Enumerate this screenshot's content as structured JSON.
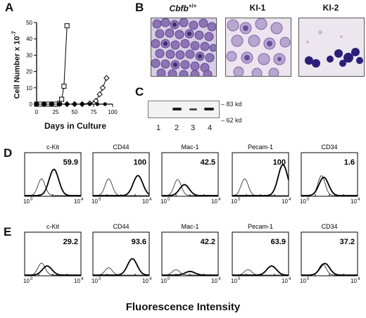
{
  "panel_labels": {
    "a": "A",
    "b": "B",
    "c": "C",
    "d": "D",
    "e": "E"
  },
  "panel_a": {
    "y_axis_label": "Cell Number x 10",
    "y_axis_exponent": "-7",
    "x_axis_label": "Days in Culture"
  },
  "chart_data": {
    "type": "line",
    "xlabel": "Days in Culture",
    "ylabel": "Cell Number x 10-7",
    "xlim": [
      0,
      100
    ],
    "ylim": [
      0,
      50
    ],
    "xticks": [
      "0",
      "25",
      "50",
      "75",
      "100"
    ],
    "yticks": [
      "0",
      "10",
      "20",
      "30",
      "40",
      "50"
    ],
    "series": [
      {
        "marker": "square",
        "x": [
          0,
          5,
          10,
          15,
          20,
          25,
          30,
          33,
          36,
          40
        ],
        "y": [
          0,
          0,
          0,
          0,
          0,
          0,
          0.5,
          3,
          11,
          48
        ]
      },
      {
        "marker": "diamond",
        "x": [
          0,
          10,
          20,
          30,
          40,
          50,
          60,
          70,
          78,
          83,
          87,
          92
        ],
        "y": [
          0,
          0,
          0,
          0,
          0,
          0,
          0,
          0.5,
          2,
          6,
          10,
          16
        ]
      },
      {
        "marker": "circle",
        "x": [
          0,
          10,
          20,
          30,
          40,
          50,
          60,
          70,
          80,
          90
        ],
        "y": [
          0,
          0,
          0,
          0,
          0,
          0,
          0,
          0,
          0,
          0
        ]
      }
    ]
  },
  "panel_b": {
    "images": [
      {
        "title": "Cbfb",
        "superscript": "+/+"
      },
      {
        "title": "KI-1",
        "superscript": ""
      },
      {
        "title": "KI-2",
        "superscript": ""
      }
    ]
  },
  "panel_c": {
    "markers": [
      "83 kd",
      "62 kd"
    ],
    "lanes": [
      "1",
      "2",
      "3",
      "4"
    ]
  },
  "panel_d": {
    "markers": [
      {
        "name": "c-Kit",
        "value": "59.9"
      },
      {
        "name": "CD44",
        "value": "100"
      },
      {
        "name": "Mac-1",
        "value": "42.5"
      },
      {
        "name": "Pecam-1",
        "value": "100"
      },
      {
        "name": "CD34",
        "value": "1.6"
      }
    ]
  },
  "panel_e": {
    "markers": [
      {
        "name": "c-Kit",
        "value": "29.2"
      },
      {
        "name": "CD44",
        "value": "93.6"
      },
      {
        "name": "Mac-1",
        "value": "42.2"
      },
      {
        "name": "Pecam-1",
        "value": "63.9"
      },
      {
        "name": "CD34",
        "value": "37.2"
      }
    ]
  },
  "axis_ticks": {
    "base": "10",
    "exp_left": "0",
    "exp_right": "4"
  },
  "footer": {
    "xlabel": "Fluorescence Intensity"
  }
}
